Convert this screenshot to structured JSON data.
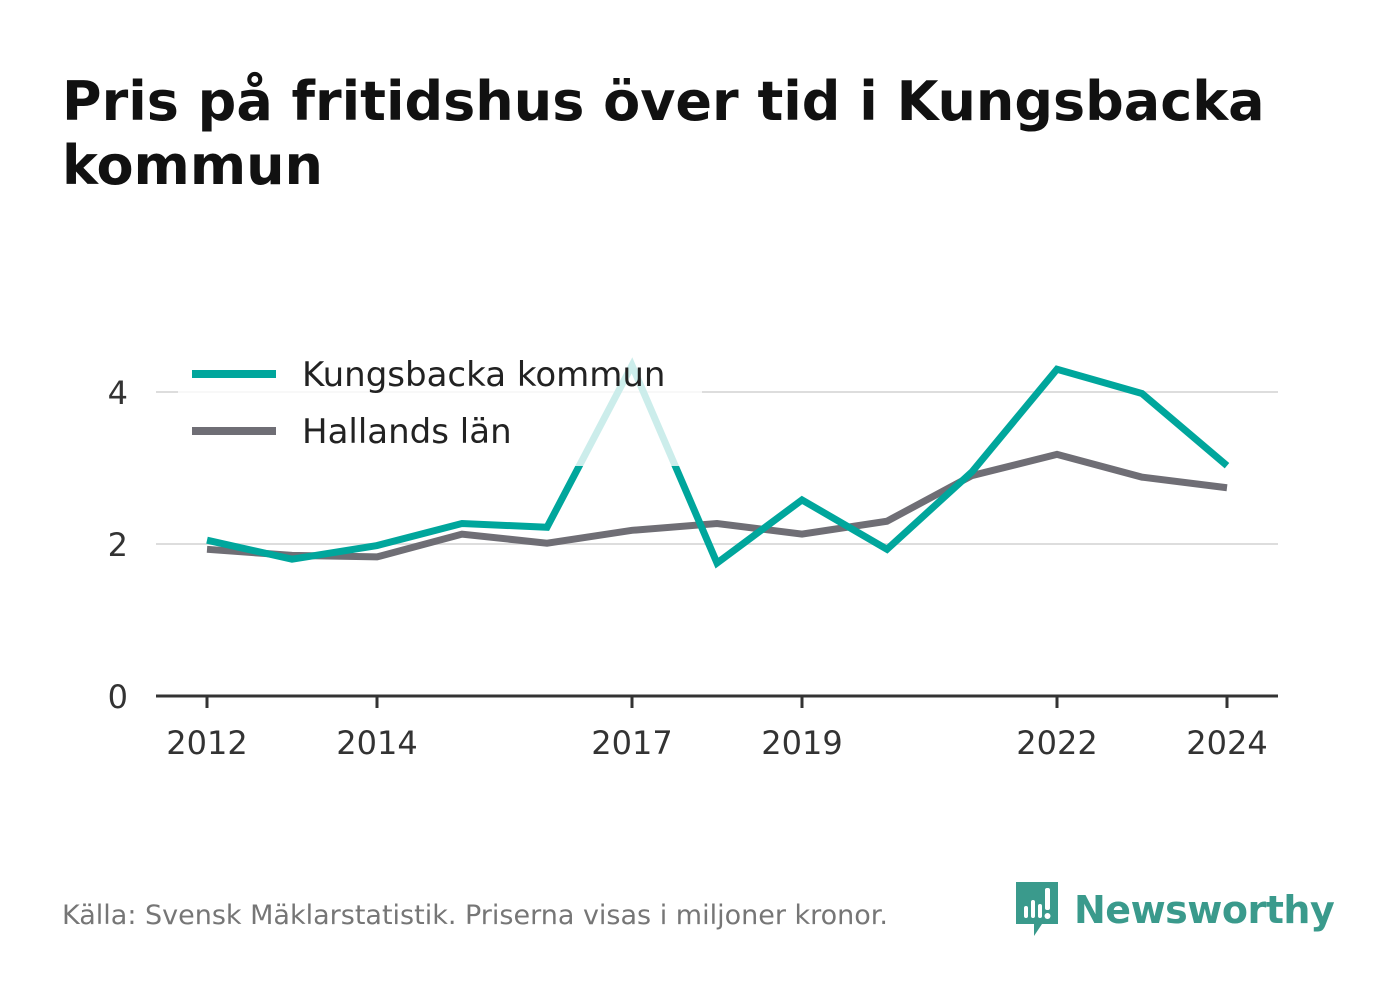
{
  "title_line1": "Pris på fritidshus över tid i Kungsbacka",
  "title_line2": "kommun",
  "source": "Källa: Svensk Mäklarstatistik. Priserna visas i miljoner kronor.",
  "brand": "Newsworthy",
  "colors": {
    "kungsbacka": "#00a69c",
    "halland": "#6f6e75",
    "grid": "#dddddd",
    "axis": "#333333",
    "text": "#333333",
    "brand": "#3a9a8c"
  },
  "chart_data": {
    "type": "line",
    "x": [
      2012,
      2013,
      2014,
      2015,
      2016,
      2017,
      2018,
      2019,
      2020,
      2021,
      2022,
      2023,
      2024
    ],
    "xticks": [
      2012,
      2014,
      2017,
      2019,
      2022,
      2024
    ],
    "xtick_labels": [
      "2012",
      "2014",
      "2017",
      "2019",
      "2022",
      "2024"
    ],
    "yticks": [
      0,
      2,
      4
    ],
    "ytick_labels": [
      "0",
      "2",
      "4"
    ],
    "ylim": [
      0,
      4.5
    ],
    "xlim": [
      2011.4,
      2024.6
    ],
    "grid": true,
    "legend_position": "top-left",
    "series": [
      {
        "name": "Kungsbacka kommun",
        "color_key": "kungsbacka",
        "values": [
          2.05,
          1.8,
          1.98,
          2.27,
          2.22,
          4.35,
          1.75,
          2.58,
          1.93,
          2.95,
          4.3,
          3.98,
          3.03
        ]
      },
      {
        "name": "Hallands län",
        "color_key": "halland",
        "values": [
          1.93,
          1.85,
          1.83,
          2.13,
          2.01,
          2.18,
          2.27,
          2.13,
          2.3,
          2.9,
          3.18,
          2.88,
          2.74
        ]
      }
    ]
  }
}
